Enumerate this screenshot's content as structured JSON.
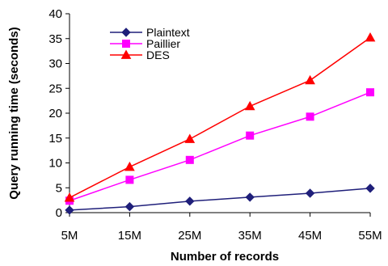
{
  "chart_data": {
    "type": "line",
    "title": "",
    "xlabel": "Number of records",
    "ylabel": "Query running time (seconds)",
    "categories": [
      "5M",
      "15M",
      "25M",
      "35M",
      "45M",
      "55M"
    ],
    "ylim": [
      0,
      40
    ],
    "yticks": [
      0,
      5,
      10,
      15,
      20,
      25,
      30,
      35,
      40
    ],
    "grid": false,
    "legend_position": "top-left",
    "series": [
      {
        "name": "Plaintext",
        "values": [
          0.5,
          1.2,
          2.3,
          3.1,
          3.9,
          4.9
        ],
        "color": "#1F1F7A",
        "marker": "diamond"
      },
      {
        "name": "Paillier",
        "values": [
          2.4,
          6.6,
          10.6,
          15.5,
          19.3,
          24.2
        ],
        "color": "#FF00FF",
        "marker": "square"
      },
      {
        "name": "DES",
        "values": [
          3.0,
          9.2,
          14.8,
          21.4,
          26.6,
          35.2
        ],
        "color": "#FF0000",
        "marker": "triangle"
      }
    ]
  }
}
